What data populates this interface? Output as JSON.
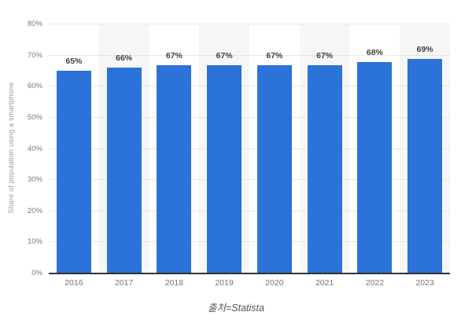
{
  "chart_data": {
    "type": "bar",
    "title": "",
    "categories": [
      "2016",
      "2017",
      "2018",
      "2019",
      "2020",
      "2021",
      "2022",
      "2023"
    ],
    "values": [
      65,
      66,
      67,
      67,
      67,
      67,
      68,
      69
    ],
    "value_labels": [
      "65%",
      "66%",
      "67%",
      "67%",
      "67%",
      "67%",
      "68%",
      "69%"
    ],
    "xlabel": "",
    "ylabel": "Share of population using a smartphone",
    "ylim": [
      0,
      80
    ],
    "y_tick_labels": [
      "0%",
      "10%",
      "20%",
      "30%",
      "40%",
      "50%",
      "60%",
      "70%",
      "80%"
    ],
    "grid": "horizontal-dotted",
    "legend": "none",
    "bar_color": "#2b72d9",
    "band_color": "#f6f6f6",
    "alternating_column_bands": true
  },
  "caption": {
    "text": "출처=Statista"
  }
}
